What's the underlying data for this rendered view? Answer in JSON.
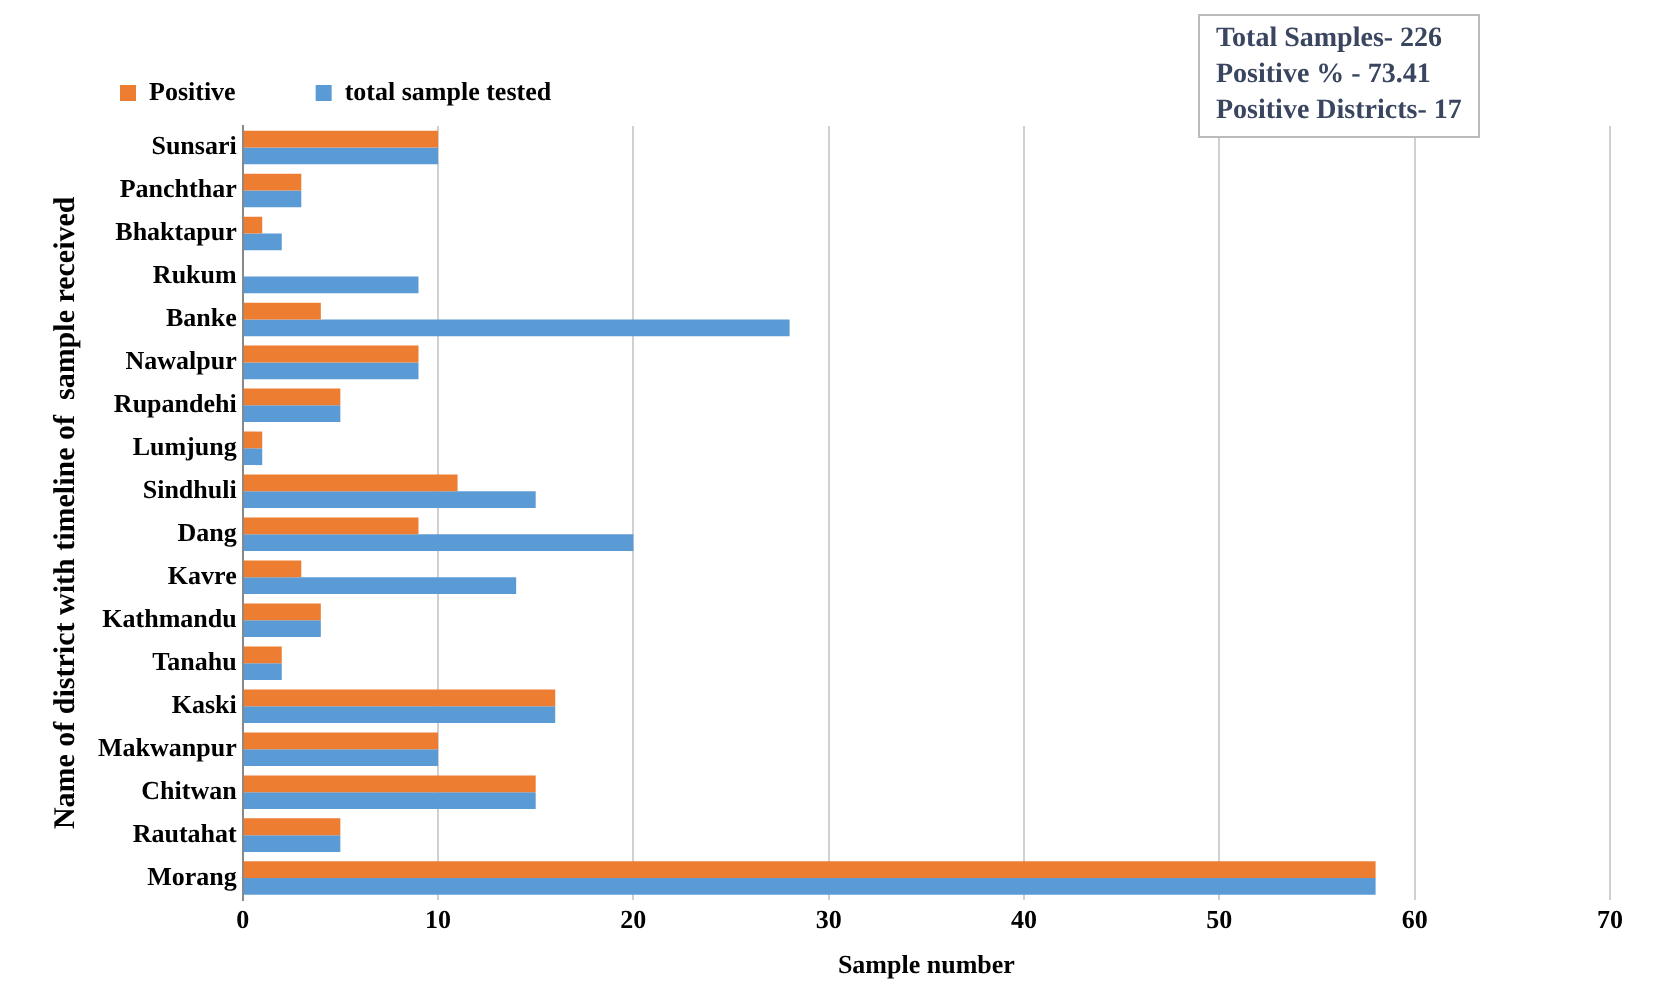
{
  "chart_data": {
    "type": "bar",
    "orientation": "horizontal",
    "xlabel": "Sample number",
    "ylabel": "Name of district with timeline of  sample received",
    "categories": [
      "Sunsari",
      "Panchthar",
      "Bhaktapur",
      "Rukum",
      "Banke",
      "Nawalpur",
      "Rupandehi",
      "Lumjung",
      "Sindhuli",
      "Dang",
      "Kavre",
      "Kathmandu",
      "Tanahu",
      "Kaski",
      "Makwanpur",
      "Chitwan",
      "Rautahat",
      "Morang"
    ],
    "series": [
      {
        "name": "Positive",
        "color": "#ed7d31",
        "values": [
          10,
          3,
          1,
          0,
          4,
          9,
          5,
          1,
          11,
          9,
          3,
          4,
          2,
          16,
          10,
          15,
          5,
          58
        ]
      },
      {
        "name": "total sample tested",
        "color": "#5b9bd5",
        "values": [
          10,
          3,
          2,
          9,
          28,
          9,
          5,
          1,
          15,
          20,
          14,
          4,
          2,
          16,
          10,
          15,
          5,
          58
        ]
      }
    ],
    "xlim": [
      0,
      70
    ],
    "xticks": [
      0,
      10,
      20,
      30,
      40,
      50,
      60,
      70
    ],
    "grid": "x",
    "legend": "top",
    "annotations": [
      "Total Samples-  226",
      "Positive % - 73.41",
      "Positive Districts- 17"
    ]
  }
}
